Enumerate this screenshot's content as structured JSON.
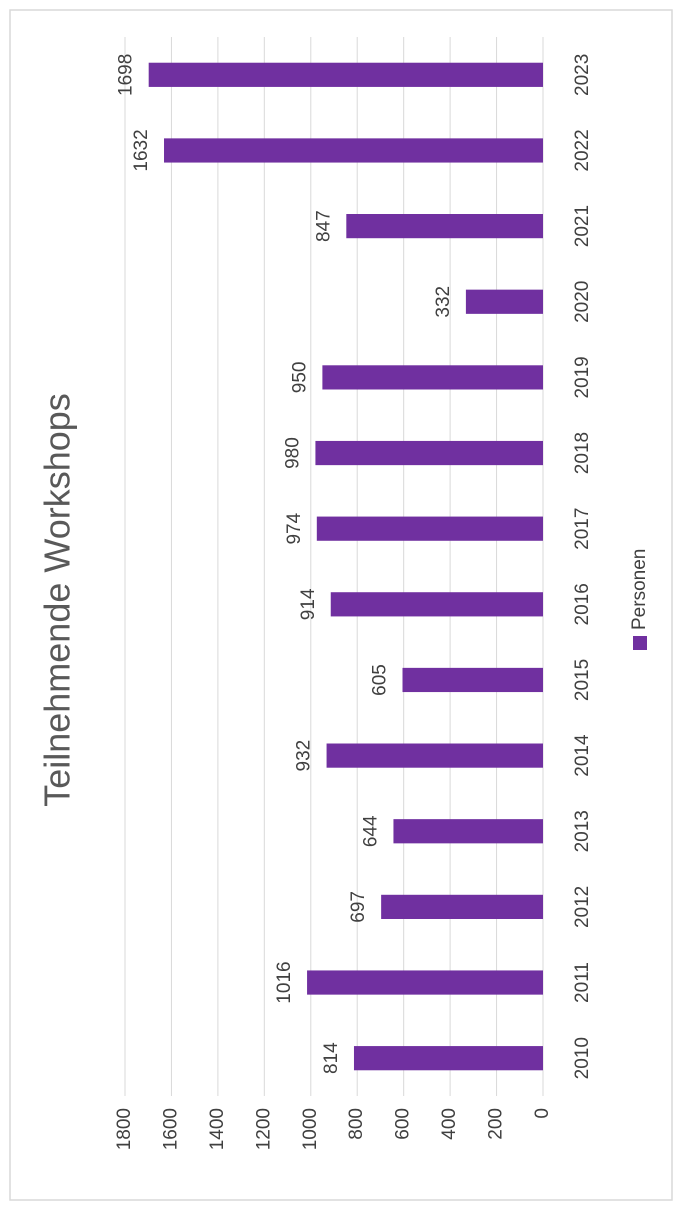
{
  "chart_data": {
    "type": "bar",
    "title": "Teilnehmende Workshops",
    "categories": [
      "2010",
      "2011",
      "2012",
      "2013",
      "2014",
      "2015",
      "2016",
      "2017",
      "2018",
      "2019",
      "2020",
      "2021",
      "2022",
      "2023"
    ],
    "series": [
      {
        "name": "Personen",
        "color": "#7030a0",
        "values": [
          814,
          1016,
          697,
          644,
          932,
          605,
          914,
          974,
          980,
          950,
          332,
          847,
          1632,
          1698
        ]
      }
    ],
    "ylim": [
      0,
      1800
    ],
    "yticks": [
      0,
      200,
      400,
      600,
      800,
      1000,
      1200,
      1400,
      1600,
      1800
    ],
    "grid": true,
    "legend": "bottom"
  }
}
